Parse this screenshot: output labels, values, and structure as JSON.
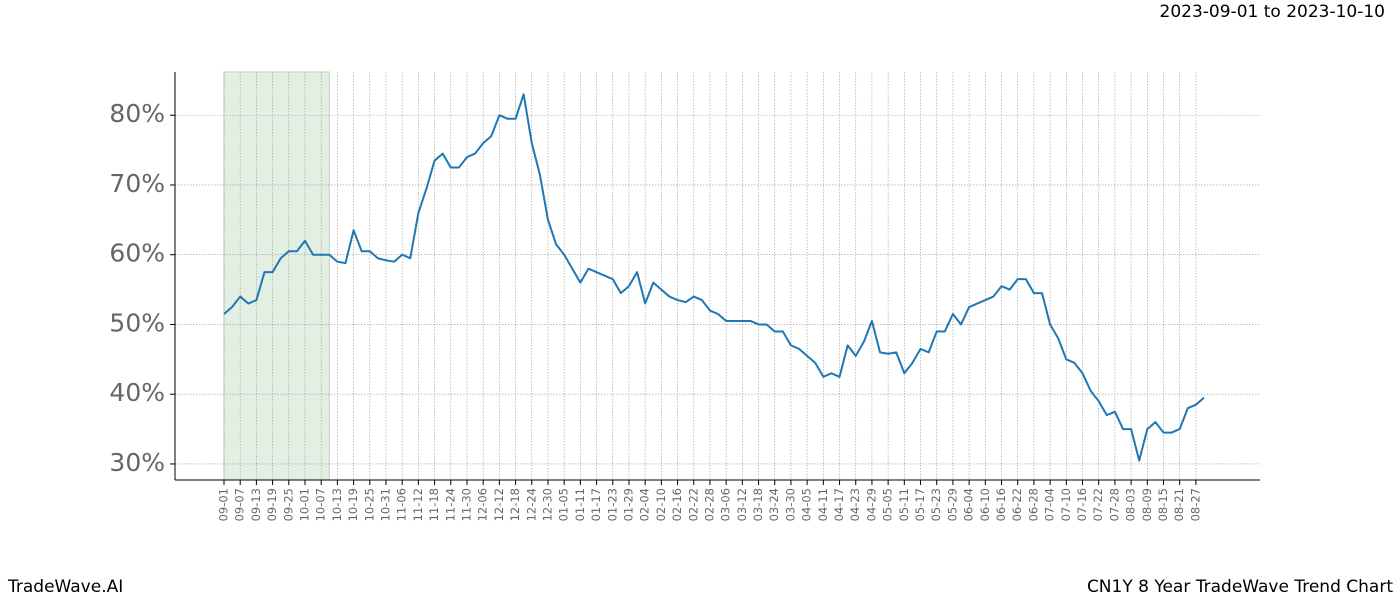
{
  "chart_data": {
    "type": "line",
    "title": "CN1Y 8 Year TradeWave Trend Chart",
    "subtitle": "2023-09-01 to 2023-10-10",
    "watermark": "TradeWave.AI",
    "x": [
      "09-01",
      "09-04",
      "09-07",
      "09-10",
      "09-13",
      "09-16",
      "09-19",
      "09-22",
      "09-25",
      "09-28",
      "10-01",
      "10-04",
      "10-07",
      "10-10",
      "10-13",
      "10-16",
      "10-19",
      "10-22",
      "10-25",
      "10-28",
      "10-31",
      "11-03",
      "11-06",
      "11-09",
      "11-12",
      "11-15",
      "11-18",
      "11-21",
      "11-24",
      "11-27",
      "11-30",
      "12-03",
      "12-06",
      "12-09",
      "12-12",
      "12-15",
      "12-18",
      "12-21",
      "12-24",
      "12-27",
      "12-30",
      "01-02",
      "01-05",
      "01-08",
      "01-11",
      "01-14",
      "01-17",
      "01-20",
      "01-23",
      "01-26",
      "01-29",
      "02-01",
      "02-04",
      "02-07",
      "02-10",
      "02-13",
      "02-16",
      "02-19",
      "02-22",
      "02-25",
      "02-28",
      "03-03",
      "03-06",
      "03-09",
      "03-12",
      "03-15",
      "03-18",
      "03-21",
      "03-24",
      "03-27",
      "03-30",
      "04-02",
      "04-05",
      "04-08",
      "04-11",
      "04-14",
      "04-17",
      "04-20",
      "04-23",
      "04-26",
      "04-29",
      "05-02",
      "05-05",
      "05-08",
      "05-11",
      "05-14",
      "05-17",
      "05-20",
      "05-23",
      "05-26",
      "05-29",
      "06-01",
      "06-04",
      "06-07",
      "06-10",
      "06-13",
      "06-16",
      "06-19",
      "06-22",
      "06-25",
      "06-28",
      "07-01",
      "07-04",
      "07-07",
      "07-10",
      "07-13",
      "07-16",
      "07-19",
      "07-22",
      "07-25",
      "07-28",
      "07-31",
      "08-03",
      "08-06",
      "08-09",
      "08-12",
      "08-15",
      "08-18",
      "08-21",
      "08-24",
      "08-27",
      "08-30"
    ],
    "series": [
      {
        "name": "CN1Y",
        "color": "#1f77b4",
        "values": [
          51.5,
          52.5,
          54,
          53,
          53.5,
          57.5,
          57.5,
          59.5,
          60.5,
          60.5,
          62,
          60,
          60,
          60,
          59,
          58.8,
          63.5,
          60.5,
          60.5,
          59.5,
          59.2,
          59,
          60,
          59.5,
          66,
          69.5,
          73.5,
          74.5,
          72.5,
          72.5,
          74,
          74.5,
          76,
          77,
          80,
          79.5,
          79.5,
          83,
          76,
          71.5,
          65,
          61.5,
          60,
          58,
          56,
          58,
          57.5,
          57,
          56.5,
          54.5,
          55.5,
          57.5,
          53,
          56,
          55,
          54,
          53.5,
          53.2,
          54,
          53.5,
          52,
          51.5,
          50.5,
          50.5,
          50.5,
          50.5,
          50,
          50,
          49,
          49,
          47,
          46.5,
          45.5,
          44.5,
          42.5,
          43,
          42.5,
          47,
          45.5,
          47.5,
          50.5,
          46,
          45.8,
          46,
          43,
          44.5,
          46.5,
          46,
          49,
          49,
          51.5,
          50,
          52.5,
          53,
          53.5,
          54,
          55.5,
          55,
          56.5,
          56.5,
          54.5,
          54.5,
          50,
          48,
          45,
          44.5,
          43,
          40.5,
          39,
          37,
          37.5,
          35,
          35,
          30.5,
          35,
          36,
          34.5,
          34.5,
          35,
          38,
          38.5,
          39.5
        ]
      }
    ],
    "xticks": [
      "09-01",
      "09-07",
      "09-13",
      "09-19",
      "09-25",
      "10-01",
      "10-07",
      "10-13",
      "10-19",
      "10-25",
      "10-31",
      "11-06",
      "11-12",
      "11-18",
      "11-24",
      "11-30",
      "12-06",
      "12-12",
      "12-18",
      "12-24",
      "12-30",
      "01-05",
      "01-11",
      "01-17",
      "01-23",
      "01-29",
      "02-04",
      "02-10",
      "02-16",
      "02-22",
      "02-28",
      "03-06",
      "03-12",
      "03-18",
      "03-24",
      "03-30",
      "04-05",
      "04-11",
      "04-17",
      "04-23",
      "04-29",
      "05-05",
      "05-11",
      "05-17",
      "05-23",
      "05-29",
      "06-04",
      "06-10",
      "06-16",
      "06-22",
      "06-28",
      "07-04",
      "07-10",
      "07-16",
      "07-22",
      "07-28",
      "08-03",
      "08-09",
      "08-15",
      "08-21",
      "08-27"
    ],
    "ylim": [
      27.7,
      86.2
    ],
    "yticks": [
      {
        "value": 30,
        "label": "30%"
      },
      {
        "value": 40,
        "label": "40%"
      },
      {
        "value": 50,
        "label": "50%"
      },
      {
        "value": 60,
        "label": "60%"
      },
      {
        "value": 70,
        "label": "70%"
      },
      {
        "value": 80,
        "label": "80%"
      }
    ],
    "grid": true,
    "highlight": {
      "start": "09-01",
      "end": "10-10",
      "color": "#e3efe3"
    }
  }
}
